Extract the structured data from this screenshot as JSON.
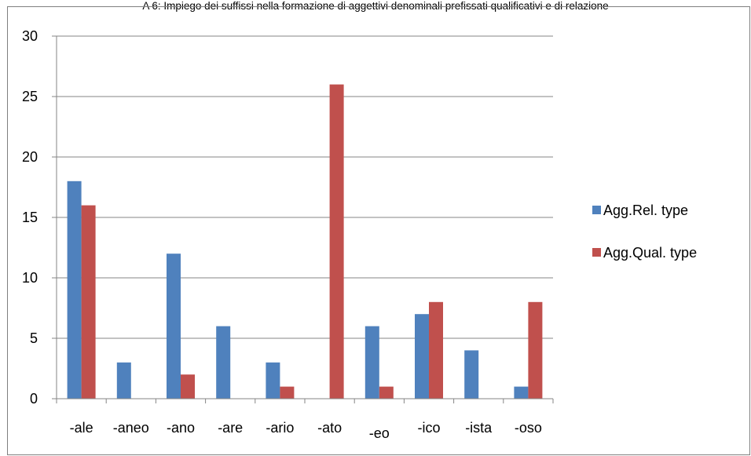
{
  "chart_data": {
    "type": "bar",
    "title": "A 6: Impiego dei suffissi nella formazione di aggettivi denominali prefissati qualificativi e di relazione",
    "categories": [
      "-ale",
      "-aneo",
      "-ano",
      "-are",
      "-ario",
      "-ato",
      "-eo",
      "-ico",
      "-ista",
      "-oso"
    ],
    "series": [
      {
        "name": "Agg.Rel. type",
        "values": [
          18,
          3,
          12,
          6,
          3,
          0,
          6,
          7,
          4,
          1
        ],
        "color": "#4f81bd"
      },
      {
        "name": "Agg.Qual. type",
        "values": [
          16,
          0,
          2,
          0,
          1,
          26,
          1,
          8,
          0,
          8
        ],
        "color": "#c0504d"
      }
    ],
    "ylim": [
      0,
      30
    ],
    "yticks": [
      0,
      5,
      10,
      15,
      20,
      25,
      30
    ],
    "xlabel": "",
    "ylabel": "",
    "grid": true,
    "legend": "right"
  }
}
